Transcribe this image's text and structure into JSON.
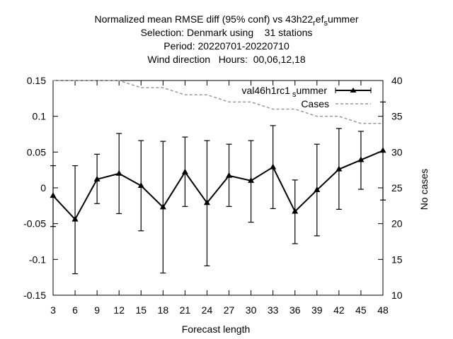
{
  "title_lines": [
    "Normalized mean RMSE diff (95% conf) vs 43h22_ref_summer",
    "Selection: Denmark using    31 stations",
    "Period: 20220701-20220710",
    "Wind direction   Hours:  00,06,12,18"
  ],
  "title_parts": {
    "l1_main": "Normalized mean RMSE diff (95% conf) vs 43h22",
    "l1_sub1": "r",
    "l1_mid": "ef",
    "l1_sub2": "s",
    "l1_end": "ummer"
  },
  "legend": {
    "main_label": "val46h1rc1",
    "main_sub": "s",
    "main_end": "ummer",
    "cases_label": "Cases"
  },
  "chart_data": {
    "type": "line",
    "xlabel": "Forecast length",
    "ylabel": "",
    "y2label": "No cases",
    "x": [
      3,
      6,
      9,
      12,
      15,
      18,
      21,
      24,
      27,
      30,
      33,
      36,
      39,
      42,
      45,
      48
    ],
    "xlim": [
      3,
      48
    ],
    "ylim": [
      -0.15,
      0.15
    ],
    "y2lim": [
      10,
      40
    ],
    "yticks": [
      "-0.15",
      "-0.1",
      "-0.05",
      "0",
      "0.05",
      "0.1",
      "0.15"
    ],
    "yticks_values": [
      -0.15,
      -0.1,
      -0.05,
      0,
      0.05,
      0.1,
      0.15
    ],
    "y2ticks": [
      "10",
      "15",
      "20",
      "25",
      "30",
      "35",
      "40"
    ],
    "y2ticks_values": [
      10,
      15,
      20,
      25,
      30,
      35,
      40
    ],
    "xticks": [
      "3",
      "6",
      "9",
      "12",
      "15",
      "18",
      "21",
      "24",
      "27",
      "30",
      "33",
      "36",
      "39",
      "42",
      "45",
      "48"
    ],
    "series": [
      {
        "name": "val46h1rc1_summer",
        "color": "#000000",
        "values": [
          -0.011,
          -0.044,
          0.012,
          0.02,
          0.003,
          -0.027,
          0.022,
          -0.021,
          0.017,
          0.01,
          0.029,
          -0.033,
          -0.003,
          0.026,
          0.039,
          0.052
        ],
        "err_low": [
          -0.054,
          -0.12,
          -0.022,
          -0.036,
          -0.06,
          -0.119,
          -0.026,
          -0.109,
          -0.026,
          -0.048,
          -0.029,
          -0.078,
          -0.067,
          -0.03,
          -0.002,
          -0.017
        ],
        "err_high": [
          0.031,
          0.031,
          0.047,
          0.076,
          0.066,
          0.065,
          0.071,
          0.066,
          0.061,
          0.066,
          0.087,
          0.011,
          0.061,
          0.083,
          0.079,
          0.12
        ]
      },
      {
        "name": "Cases",
        "color": "#999999",
        "axis": "right",
        "values": [
          40,
          40,
          40,
          40,
          39,
          39,
          38,
          38,
          37,
          37,
          36,
          36,
          35,
          35,
          34,
          34
        ]
      }
    ],
    "grid": false,
    "legend_position": "top-right"
  }
}
